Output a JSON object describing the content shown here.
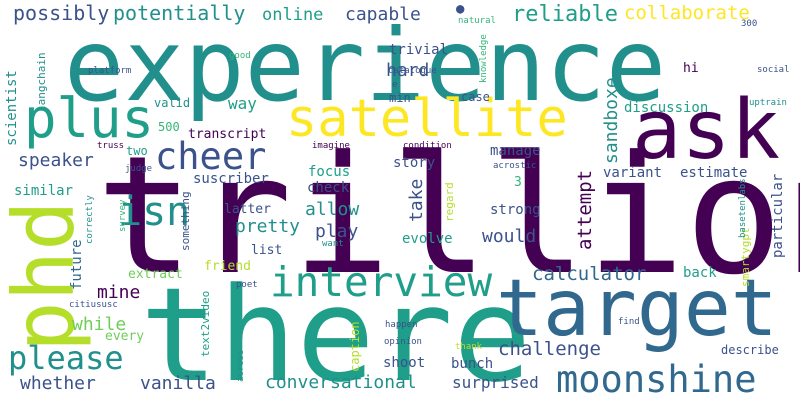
{
  "colors": {
    "background": "#ffffff",
    "palette": {
      "purple": "#440154",
      "indigo": "#3b528b",
      "blue": "#31688e",
      "teal": "#21908d",
      "cyan": "#1f9e89",
      "green": "#35b779",
      "lime": "#6ece58",
      "ygreen": "#b5de2b",
      "yellow": "#fde725"
    }
  },
  "words": [
    {
      "text": "trillion",
      "color": "purple"
    },
    {
      "text": "experience",
      "color": "teal"
    },
    {
      "text": "there",
      "color": "cyan"
    },
    {
      "text": "target",
      "color": "blue"
    },
    {
      "text": "phd",
      "color": "ygreen"
    },
    {
      "text": "ask",
      "color": "purple"
    },
    {
      "text": "satellite",
      "color": "yellow"
    },
    {
      "text": "plus",
      "color": "cyan"
    },
    {
      "text": "interview",
      "color": "cyan"
    },
    {
      "text": "moonshine",
      "color": "blue"
    },
    {
      "text": "cheer",
      "color": "indigo"
    },
    {
      "text": "please",
      "color": "teal"
    },
    {
      "text": "isn",
      "color": "teal"
    },
    {
      "text": "possibly",
      "color": "indigo"
    },
    {
      "text": "potentially",
      "color": "teal"
    },
    {
      "text": "reliable",
      "color": "cyan"
    },
    {
      "text": "collaborate",
      "color": "yellow"
    },
    {
      "text": "capable",
      "color": "indigo"
    },
    {
      "text": "online",
      "color": "cyan"
    },
    {
      "text": "hard",
      "color": "indigo"
    },
    {
      "text": "sandboxe",
      "color": "teal"
    },
    {
      "text": "attempt",
      "color": "purple"
    },
    {
      "text": "calculator",
      "color": "blue"
    },
    {
      "text": "challenge",
      "color": "indigo"
    },
    {
      "text": "conversational",
      "color": "teal"
    },
    {
      "text": "whether",
      "color": "indigo"
    },
    {
      "text": "vanilla",
      "color": "indigo"
    },
    {
      "text": "surprised",
      "color": "indigo"
    },
    {
      "text": "speaker",
      "color": "indigo"
    },
    {
      "text": "mine",
      "color": "purple"
    },
    {
      "text": "while",
      "color": "lime"
    },
    {
      "text": "would",
      "color": "indigo"
    },
    {
      "text": "pretty",
      "color": "teal"
    },
    {
      "text": "allow",
      "color": "teal"
    },
    {
      "text": "play",
      "color": "indigo"
    },
    {
      "text": "take",
      "color": "indigo"
    },
    {
      "text": "scientist",
      "color": "teal"
    },
    {
      "text": "way",
      "color": "cyan"
    },
    {
      "text": "future",
      "color": "blue"
    },
    {
      "text": "particular",
      "color": "indigo"
    },
    {
      "text": "similar",
      "color": "cyan"
    },
    {
      "text": "discussion",
      "color": "cyan"
    },
    {
      "text": "transcript",
      "color": "purple"
    },
    {
      "text": "variant",
      "color": "indigo"
    },
    {
      "text": "estimate",
      "color": "indigo"
    },
    {
      "text": "manage",
      "color": "indigo"
    },
    {
      "text": "strong",
      "color": "indigo"
    },
    {
      "text": "evolve",
      "color": "cyan"
    },
    {
      "text": "back",
      "color": "cyan"
    },
    {
      "text": "shoot",
      "color": "indigo"
    },
    {
      "text": "bunch",
      "color": "indigo"
    },
    {
      "text": "trivial",
      "color": "indigo"
    },
    {
      "text": "focus",
      "color": "cyan"
    },
    {
      "text": "story",
      "color": "indigo"
    },
    {
      "text": "check",
      "color": "indigo"
    },
    {
      "text": "suscriber",
      "color": "indigo"
    },
    {
      "text": "latter",
      "color": "indigo"
    },
    {
      "text": "list",
      "color": "indigo"
    },
    {
      "text": "friend",
      "color": "ygreen"
    },
    {
      "text": "extract",
      "color": "lime"
    },
    {
      "text": "every",
      "color": "lime"
    },
    {
      "text": "caption",
      "color": "ygreen"
    },
    {
      "text": "describe",
      "color": "indigo"
    },
    {
      "text": "something",
      "color": "indigo"
    },
    {
      "text": "text2video",
      "color": "cyan"
    },
    {
      "text": "valid",
      "color": "teal"
    },
    {
      "text": "500",
      "color": "green"
    },
    {
      "text": "two",
      "color": "cyan"
    },
    {
      "text": "3",
      "color": "green"
    },
    {
      "text": "case",
      "color": "indigo"
    },
    {
      "text": "min",
      "color": "indigo"
    },
    {
      "text": "hi",
      "color": "purple"
    },
    {
      "text": "regard",
      "color": "ygreen"
    },
    {
      "text": "smartygpt",
      "color": "ygreen"
    },
    {
      "text": "langchain",
      "color": "teal"
    },
    {
      "text": "platform",
      "color": "indigo"
    },
    {
      "text": "catalogue",
      "color": "indigo"
    },
    {
      "text": "good",
      "color": "green"
    },
    {
      "text": "social",
      "color": "indigo"
    },
    {
      "text": "uptrain",
      "color": "teal"
    },
    {
      "text": "300",
      "color": "indigo"
    },
    {
      "text": "natural",
      "color": "green"
    },
    {
      "text": "knowledge",
      "color": "green"
    },
    {
      "text": "truss",
      "color": "purple"
    },
    {
      "text": "judge",
      "color": "indigo"
    },
    {
      "text": "imagine",
      "color": "purple"
    },
    {
      "text": "condition",
      "color": "purple"
    },
    {
      "text": "acrostic",
      "color": "indigo"
    },
    {
      "text": "basetenlabs",
      "color": "teal"
    },
    {
      "text": "survey",
      "color": "green"
    },
    {
      "text": "correctly",
      "color": "teal"
    },
    {
      "text": "want",
      "color": "teal"
    },
    {
      "text": "poet",
      "color": "indigo"
    },
    {
      "text": "citiususc",
      "color": "indigo"
    },
    {
      "text": "happen",
      "color": "indigo"
    },
    {
      "text": "opinion",
      "color": "indigo"
    },
    {
      "text": "thank",
      "color": "ygreen"
    },
    {
      "text": "find",
      "color": "indigo"
    },
    {
      "text": "across",
      "color": "teal"
    },
    {
      "text": "e",
      "color": "indigo"
    }
  ]
}
